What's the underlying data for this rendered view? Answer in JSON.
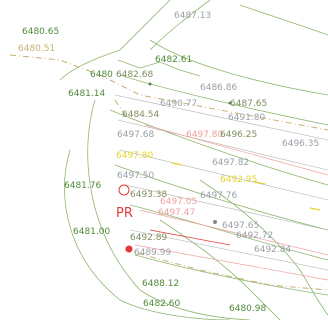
{
  "colors": {
    "contour": "#8db870",
    "contour_dark": "#4f8a3a",
    "survey_label": "#7f8f60",
    "spot_label": "#9aa0a8",
    "red": "#e23a3a",
    "pink": "#f0a0a0",
    "yellow": "#e3d62a",
    "boundary": "#c8b070"
  },
  "labels": [
    {
      "id": "l1",
      "text": "6480.65",
      "color": "contour_dark"
    },
    {
      "id": "l2",
      "text": "6480.51",
      "color": "boundary"
    },
    {
      "id": "l3",
      "text": "6487.13",
      "color": "spot_label"
    },
    {
      "id": "l4",
      "text": "6482.61",
      "color": "contour_dark"
    },
    {
      "id": "l5",
      "text": "6480",
      "color": "contour_dark"
    },
    {
      "id": "l6",
      "text": "6482.68",
      "color": "survey_label"
    },
    {
      "id": "l7",
      "text": "6486.86",
      "color": "spot_label"
    },
    {
      "id": "l8",
      "text": "6481.14",
      "color": "contour_dark"
    },
    {
      "id": "l9",
      "text": "6490.77",
      "color": "spot_label"
    },
    {
      "id": "l10",
      "text": "6487.65",
      "color": "survey_label"
    },
    {
      "id": "l11",
      "text": "6491.80",
      "color": "spot_label"
    },
    {
      "id": "l12",
      "text": "6484.54",
      "color": "survey_label"
    },
    {
      "id": "l13",
      "text": "6497.68",
      "color": "spot_label"
    },
    {
      "id": "l14",
      "text": "6497.80",
      "color": "pink"
    },
    {
      "id": "l15",
      "text": "6496.25",
      "color": "survey_label"
    },
    {
      "id": "l16",
      "text": "6496.35",
      "color": "spot_label"
    },
    {
      "id": "l17",
      "text": "6497.80",
      "color": "yellow"
    },
    {
      "id": "l18",
      "text": "6497.82",
      "color": "spot_label"
    },
    {
      "id": "l19",
      "text": "6497.50",
      "color": "spot_label"
    },
    {
      "id": "l20",
      "text": "6492.95",
      "color": "yellow"
    },
    {
      "id": "l21",
      "text": "6481.76",
      "color": "contour_dark"
    },
    {
      "id": "l22",
      "text": "6497.76",
      "color": "spot_label"
    },
    {
      "id": "l23",
      "text": "6493.38",
      "color": "survey_label"
    },
    {
      "id": "l24",
      "text": "6497.05",
      "color": "pink"
    },
    {
      "id": "l25",
      "text": "PR",
      "color": "red"
    },
    {
      "id": "l26",
      "text": "6497.47",
      "color": "pink"
    },
    {
      "id": "l27",
      "text": "6481.00",
      "color": "contour_dark"
    },
    {
      "id": "l28",
      "text": "6492.89",
      "color": "survey_label"
    },
    {
      "id": "l29",
      "text": "6497.65",
      "color": "spot_label"
    },
    {
      "id": "l30",
      "text": "6492.72",
      "color": "spot_label"
    },
    {
      "id": "l31",
      "text": "6492.84",
      "color": "spot_label"
    },
    {
      "id": "l32",
      "text": "6489.99",
      "color": "spot_label"
    },
    {
      "id": "l33",
      "text": "6488.12",
      "color": "contour_dark"
    },
    {
      "id": "l34",
      "text": "6482.60",
      "color": "contour_dark"
    },
    {
      "id": "l35",
      "text": "6480.98",
      "color": "contour_dark"
    }
  ]
}
